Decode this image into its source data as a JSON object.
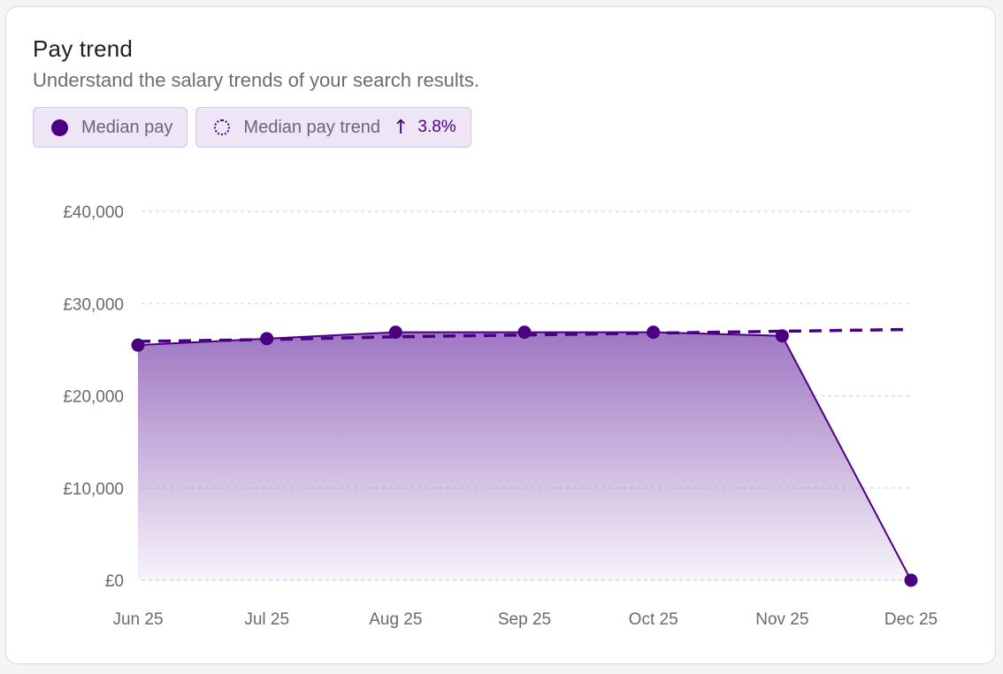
{
  "card": {
    "title": "Pay trend",
    "subtitle": "Understand the salary trends of your search results."
  },
  "legend": {
    "median_label": "Median pay",
    "trend_label": "Median pay trend",
    "trend_arrow_icon": "arrow-up-icon",
    "trend_change": "3.8%"
  },
  "colors": {
    "accent": "#4b0082",
    "fill_top": "#9a6fc0",
    "grid": "#d8d8de"
  },
  "chart_data": {
    "type": "area",
    "x": [
      "Jun 25",
      "Jul 25",
      "Aug 25",
      "Sep 25",
      "Oct 25",
      "Nov 25",
      "Dec 25"
    ],
    "yticks": [
      "£0",
      "£10,000",
      "£20,000",
      "£30,000",
      "£40,000"
    ],
    "ylim": [
      0,
      40000
    ],
    "grid": "horizontal-dashed",
    "series": [
      {
        "name": "Median pay",
        "style": "solid-area",
        "values": [
          25500,
          26200,
          26900,
          26900,
          26900,
          26500,
          0
        ]
      },
      {
        "name": "Median pay trend",
        "style": "dashed",
        "values": [
          25900,
          26100,
          26400,
          26600,
          26800,
          27000,
          27200
        ]
      }
    ]
  }
}
